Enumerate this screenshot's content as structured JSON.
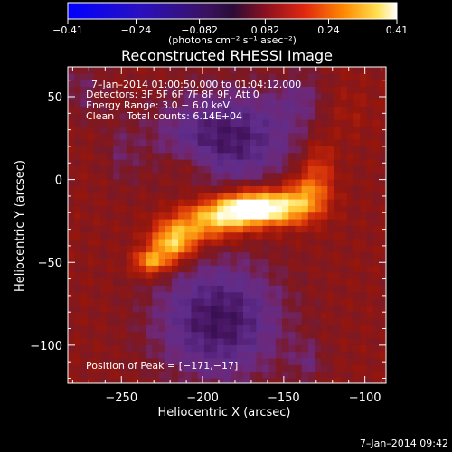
{
  "chart_data": {
    "type": "heatmap",
    "title": "Reconstructed RHESSI Image",
    "xlabel": "Heliocentric X (arcsec)",
    "ylabel": "Heliocentric Y (arcsec)",
    "xlim": [
      -283,
      -87
    ],
    "ylim": [
      -123,
      68
    ],
    "x_ticks": [
      -250,
      -200,
      -150,
      -100
    ],
    "y_ticks": [
      50,
      0,
      -50,
      -100
    ],
    "x_tick_labels": [
      "−250",
      "−200",
      "−150",
      "−100"
    ],
    "y_tick_labels": [
      "50",
      "0",
      "−50",
      "−100"
    ],
    "colorbar": {
      "range": [
        -0.41,
        0.41
      ],
      "ticks": [
        -0.41,
        -0.24,
        -0.082,
        0.082,
        0.24,
        0.41
      ],
      "tick_labels": [
        "−0.41",
        "−0.24",
        "−0.082",
        "0.082",
        "0.24",
        "0.41"
      ],
      "units_text": "(photons cm⁻² s⁻¹ asec⁻²)"
    },
    "annotations": {
      "time_range": "7–Jan–2014 01:00:50.000 to 01:04:12.000",
      "detectors": "Detectors: 3F 5F 6F 7F 8F 9F, Att 0",
      "energy": "Energy Range: 3.0 − 6.0 keV",
      "clean": "Clean    Total counts: 6.14E+04",
      "peak": "Position of Peak = [−171,−17]"
    },
    "peak_position": [
      -171,
      -17
    ],
    "timestamp": "7–Jan–2014 09:42"
  }
}
